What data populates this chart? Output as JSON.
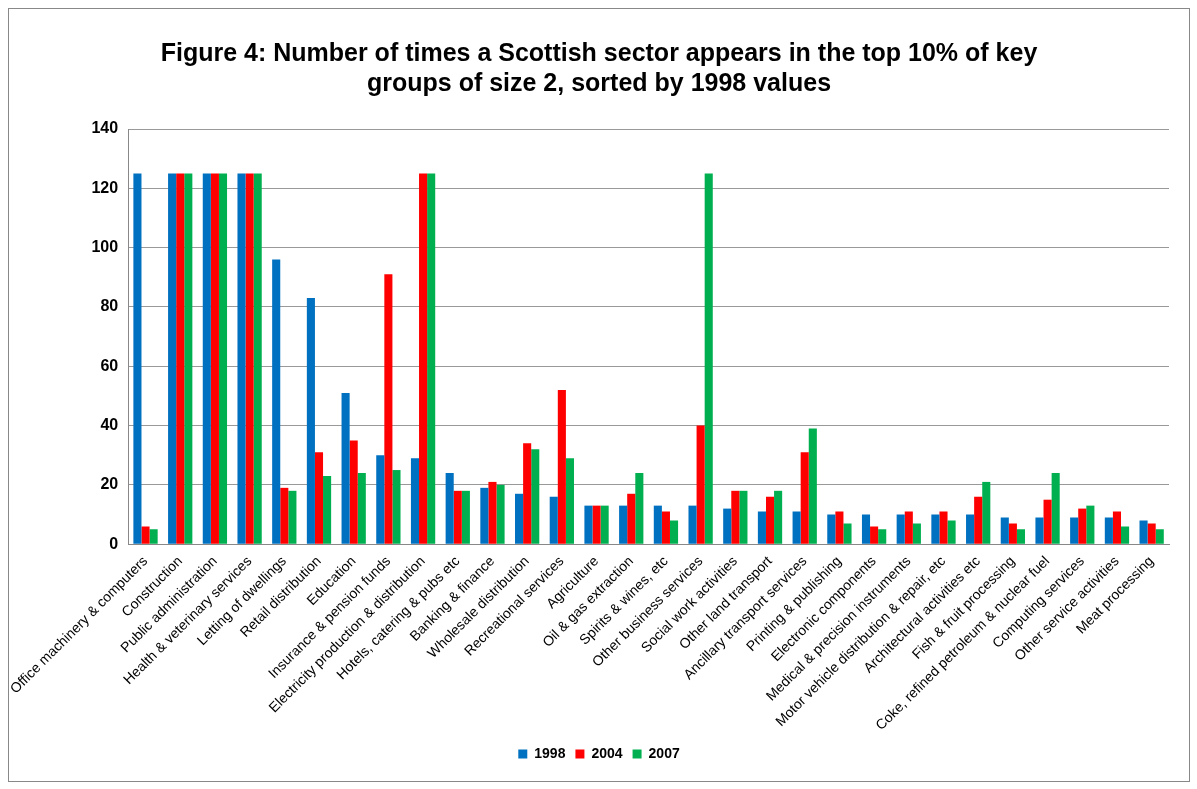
{
  "chart_data": {
    "type": "bar",
    "title": [
      "Figure 4: Number of times a Scottish sector appears in the top 10% of key",
      "groups of size 2, sorted by 1998 values"
    ],
    "categories": [
      "Office machinery & computers",
      "Construction",
      "Public administration",
      "Health & veterinary services",
      "Letting of dwellings",
      "Retail distribution",
      "Education",
      "Insurance & pension funds",
      "Electricity production & distribution",
      "Hotels, catering & pubs etc",
      "Banking & finance",
      "Wholesale distribution",
      "Recreational services",
      "Agriculture",
      "Oil & gas extraction",
      "Spirits & wines, etc",
      "Other business services",
      "Social work activities",
      "Other land transport",
      "Ancillary transport services",
      "Printing & publishing",
      "Electronic components",
      "Medical & precision instruments",
      "Motor vehicle distribution & repair, etc",
      "Architectural activities etc",
      "Fish & fruit processing",
      "Coke, refined petroleum & nuclear fuel",
      "Computing services",
      "Other service activities",
      "Meat processing"
    ],
    "series": [
      {
        "name": "1998",
        "color": "#0070c0",
        "values": [
          125,
          125,
          125,
          125,
          96,
          83,
          51,
          30,
          29,
          24,
          19,
          17,
          16,
          13,
          13,
          13,
          13,
          12,
          11,
          11,
          10,
          10,
          10,
          10,
          10,
          9,
          9,
          9,
          9,
          8
        ]
      },
      {
        "name": "2004",
        "color": "#ff0000",
        "values": [
          6,
          125,
          125,
          125,
          19,
          31,
          35,
          91,
          125,
          18,
          21,
          34,
          52,
          13,
          17,
          11,
          40,
          18,
          16,
          31,
          11,
          6,
          11,
          11,
          16,
          7,
          15,
          12,
          11,
          7
        ]
      },
      {
        "name": "2007",
        "color": "#00b050",
        "values": [
          5,
          125,
          125,
          125,
          18,
          23,
          24,
          25,
          125,
          18,
          20,
          32,
          29,
          13,
          24,
          8,
          125,
          18,
          18,
          39,
          7,
          5,
          7,
          8,
          21,
          5,
          24,
          13,
          6,
          5
        ]
      }
    ],
    "ylim": [
      0,
      140
    ],
    "yticks": [
      0,
      20,
      40,
      60,
      80,
      100,
      120,
      140
    ],
    "grid": "y",
    "legend": "bottom"
  }
}
